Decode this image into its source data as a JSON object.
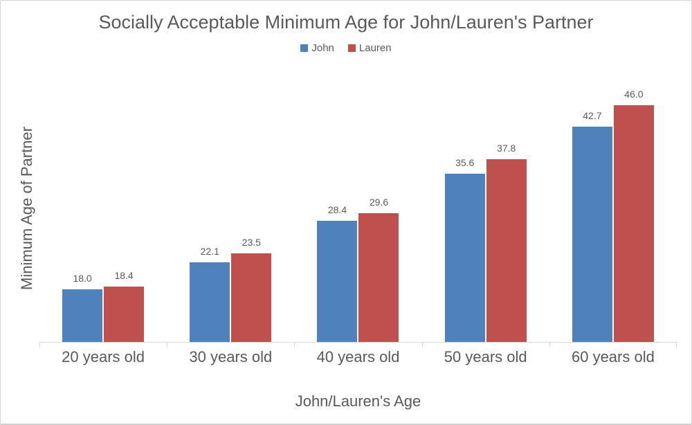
{
  "window": {
    "background": "#ffffff",
    "border_color": "#d4d4d4",
    "text_color": "#595959"
  },
  "chart_data": {
    "type": "bar",
    "title": "Socially Acceptable Minimum Age for John/Lauren's Partner",
    "xlabel": "John/Lauren's Age",
    "ylabel": "Minimum Age of Partner",
    "categories": [
      "20 years old",
      "30 years old",
      "40 years old",
      "50 years old",
      "60 years old"
    ],
    "series": [
      {
        "name": "John",
        "color": "#4F81BD",
        "values": [
          18.0,
          22.1,
          28.4,
          35.6,
          42.7
        ]
      },
      {
        "name": "Lauren",
        "color": "#C0504D",
        "values": [
          18.4,
          23.5,
          29.6,
          37.8,
          46.0
        ]
      }
    ],
    "ylim": [
      10,
      50
    ],
    "grid": false,
    "legend_position": "top",
    "data_labels": true,
    "data_label_format": "0.0",
    "axis_color": "#d9d9d9",
    "text_color": "#595959"
  }
}
